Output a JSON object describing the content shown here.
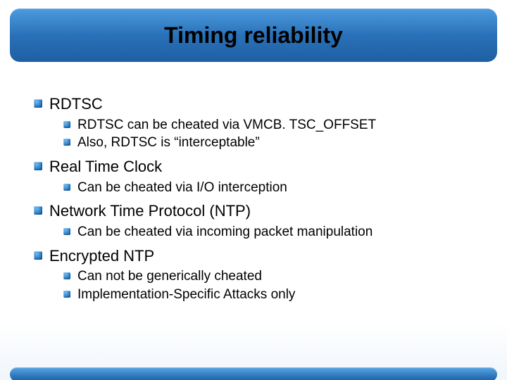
{
  "slide": {
    "title": "Timing reliability",
    "title_color": "#000000",
    "title_fontsize": 32,
    "bar_gradient": [
      "#4d9be0",
      "#2a71b8",
      "#1e5fa3"
    ],
    "background_gradient": [
      "#ffffff",
      "#f0f6fb"
    ],
    "bullet_color": "#2a7fc9",
    "l1_fontsize": 22,
    "l2_fontsize": 19,
    "items": [
      {
        "label": "RDTSC",
        "children": [
          {
            "label": "RDTSC can be cheated via VMCB. TSC_OFFSET"
          },
          {
            "label": "Also, RDTSC is “interceptable”"
          }
        ]
      },
      {
        "label": "Real Time Clock",
        "children": [
          {
            "label": "Can be cheated via I/O interception"
          }
        ]
      },
      {
        "label": "Network Time Protocol (NTP)",
        "children": [
          {
            "label": "Can be cheated via incoming packet manipulation"
          }
        ]
      },
      {
        "label": "Encrypted NTP",
        "children": [
          {
            "label": "Can not be generically cheated"
          },
          {
            "label": "Implementation-Specific Attacks only"
          }
        ]
      }
    ]
  }
}
